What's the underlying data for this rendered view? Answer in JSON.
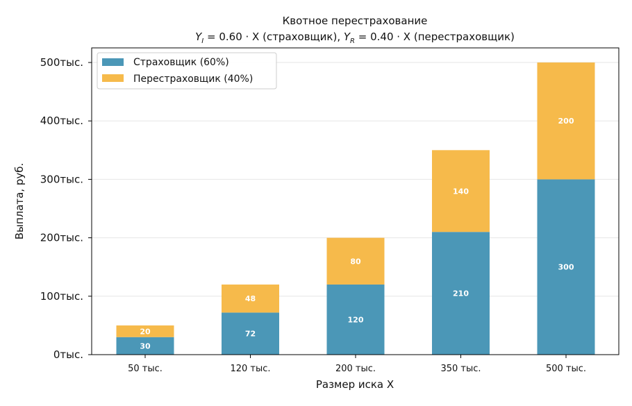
{
  "colors": {
    "insurer": "#4b97b7",
    "reinsurer": "#f6ba4b",
    "grid": "#e6e6e6",
    "axis": "#000000"
  },
  "chart_data": {
    "type": "bar",
    "stacked": true,
    "title": "Квотное перестрахование",
    "subtitle_parts": {
      "yi_var": "Y",
      "yi_sub": "I",
      "yi_expr": " = 0.60 · X",
      "yi_role": " (страховщик),  ",
      "yr_var": "Y",
      "yr_sub": "R",
      "yr_expr": " = 0.40 · X",
      "yr_role": " (перестраховщик)"
    },
    "xlabel": "Размер иска X",
    "ylabel": "Выплата, руб.",
    "categories": [
      "50 тыс.",
      "120 тыс.",
      "200 тыс.",
      "350 тыс.",
      "500 тыс."
    ],
    "series": [
      {
        "name": "Страховщик (60%)",
        "values": [
          30,
          72,
          120,
          210,
          300
        ],
        "labels": [
          "30",
          "72",
          "120",
          "210",
          "300"
        ]
      },
      {
        "name": "Перестраховщик (40%)",
        "values": [
          20,
          48,
          80,
          140,
          200
        ],
        "labels": [
          "20",
          "48",
          "80",
          "140",
          "200"
        ]
      }
    ],
    "ylim": [
      0,
      525
    ],
    "yticks": [
      0,
      100,
      200,
      300,
      400,
      500
    ],
    "ytick_labels": [
      "0тыс.",
      "100тыс.",
      "200тыс.",
      "300тыс.",
      "400тыс.",
      "500тыс."
    ],
    "grid": "y",
    "legend_position": "top-left"
  }
}
